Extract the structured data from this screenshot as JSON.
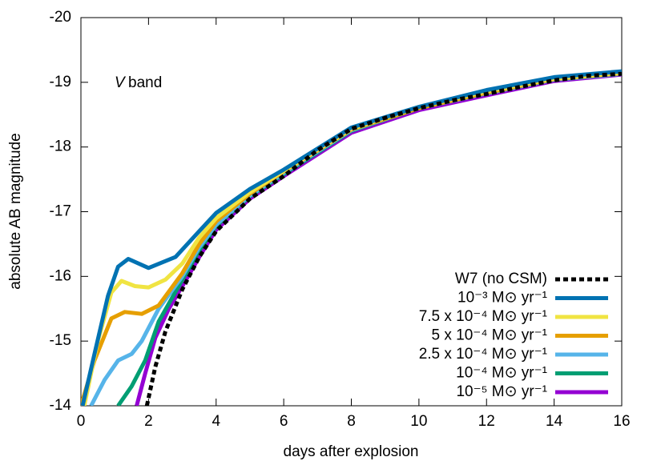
{
  "chart_data": {
    "type": "line",
    "xlabel": "days after explosion",
    "ylabel": "absolute AB magnitude",
    "annotation_italic": "V",
    "annotation": "band",
    "xlim": [
      0,
      16
    ],
    "xticks": [
      0,
      2,
      4,
      6,
      8,
      10,
      12,
      14,
      16
    ],
    "ylim": [
      -14,
      -20
    ],
    "yticks": [
      -20,
      -19,
      -18,
      -17,
      -16,
      -15,
      -14
    ],
    "legend": "bottom right",
    "series": [
      {
        "name": "W7 (no CSM)",
        "color": "#000000",
        "dashed": true,
        "x": [
          1.95,
          2.2,
          2.5,
          3,
          3.5,
          4,
          5,
          6,
          7,
          8,
          9,
          10,
          11,
          12,
          13,
          14,
          15,
          16
        ],
        "values": [
          -14,
          -14.6,
          -15.15,
          -15.8,
          -16.3,
          -16.7,
          -17.2,
          -17.55,
          -17.95,
          -18.28,
          -18.45,
          -18.6,
          -18.72,
          -18.82,
          -18.93,
          -19.03,
          -19.1,
          -19.13
        ]
      },
      {
        "name": "10⁻³ M⊙ yr⁻¹",
        "color": "#0072b2",
        "dashed": false,
        "x": [
          0.05,
          0.4,
          0.8,
          1.1,
          1.4,
          2,
          2.8,
          3.5,
          4,
          5,
          6,
          8,
          10,
          12,
          14,
          16
        ],
        "values": [
          -14,
          -14.8,
          -15.7,
          -16.15,
          -16.27,
          -16.13,
          -16.3,
          -16.7,
          -16.98,
          -17.35,
          -17.65,
          -18.3,
          -18.62,
          -18.88,
          -19.08,
          -19.17
        ]
      },
      {
        "name": "7.5 x 10⁻⁴ M⊙ yr⁻¹",
        "color": "#f0e442",
        "dashed": false,
        "x": [
          0.1,
          0.5,
          0.9,
          1.2,
          1.6,
          2,
          2.5,
          3,
          3.5,
          4,
          5,
          6,
          8,
          10,
          12,
          14,
          16
        ],
        "values": [
          -14,
          -15,
          -15.75,
          -15.93,
          -15.85,
          -15.83,
          -15.95,
          -16.2,
          -16.6,
          -16.9,
          -17.3,
          -17.63,
          -18.28,
          -18.62,
          -18.86,
          -19.06,
          -19.15
        ]
      },
      {
        "name": "5 x 10⁻⁴ M⊙ yr⁻¹",
        "color": "#e69f00",
        "dashed": false,
        "x": [
          0,
          0.4,
          0.9,
          1.3,
          1.8,
          2.3,
          3,
          3.5,
          4,
          5,
          6,
          8,
          10,
          12,
          14,
          16
        ],
        "values": [
          -14,
          -14.7,
          -15.35,
          -15.45,
          -15.42,
          -15.55,
          -16.05,
          -16.5,
          -16.85,
          -17.28,
          -17.62,
          -18.27,
          -18.6,
          -18.84,
          -19.05,
          -19.14
        ]
      },
      {
        "name": "2.5 x 10⁻⁴ M⊙ yr⁻¹",
        "color": "#56b4e9",
        "dashed": false,
        "x": [
          0.3,
          0.7,
          1.1,
          1.5,
          1.8,
          2.3,
          3,
          3.5,
          4,
          5,
          6,
          8,
          10,
          12,
          14,
          16
        ],
        "values": [
          -14,
          -14.4,
          -14.7,
          -14.8,
          -15,
          -15.5,
          -16,
          -16.45,
          -16.8,
          -17.25,
          -17.6,
          -18.26,
          -18.6,
          -18.83,
          -19.04,
          -19.13
        ]
      },
      {
        "name": "10⁻⁴ M⊙ yr⁻¹",
        "color": "#009e73",
        "dashed": false,
        "x": [
          1.1,
          1.5,
          1.9,
          2.3,
          3,
          3.5,
          4,
          5,
          6,
          8,
          10,
          12,
          14,
          16
        ],
        "values": [
          -14,
          -14.3,
          -14.7,
          -15.3,
          -15.95,
          -16.4,
          -16.78,
          -17.24,
          -17.58,
          -18.25,
          -18.6,
          -18.83,
          -19.04,
          -19.13
        ]
      },
      {
        "name": "10⁻⁵ M⊙ yr⁻¹",
        "color": "#9400d3",
        "dashed": false,
        "x": [
          1.65,
          1.9,
          2.2,
          2.6,
          3,
          3.5,
          4,
          5,
          6,
          8,
          10,
          12,
          14,
          16
        ],
        "values": [
          -14,
          -14.5,
          -15.05,
          -15.5,
          -15.85,
          -16.3,
          -16.72,
          -17.2,
          -17.55,
          -18.22,
          -18.57,
          -18.8,
          -19.02,
          -19.12
        ]
      }
    ]
  }
}
